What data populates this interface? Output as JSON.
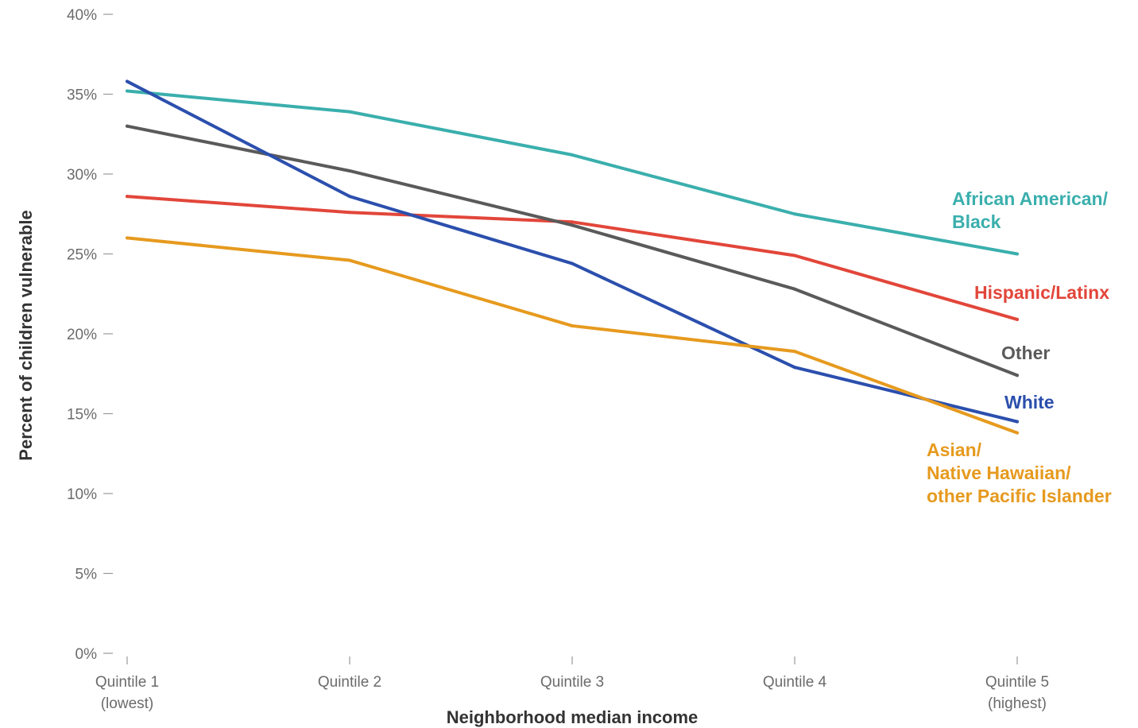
{
  "chart_data": {
    "type": "line",
    "xlabel": "Neighborhood median income",
    "ylabel": "Percent of children vulnerable",
    "ylim": [
      0,
      40
    ],
    "y_ticks": [
      0,
      5,
      10,
      15,
      20,
      25,
      30,
      35,
      40
    ],
    "y_tick_format": "{v}%",
    "grid": false,
    "legend": "direct labels at line ends (right)",
    "categories": [
      [
        "Quintile 1",
        "(lowest)"
      ],
      [
        "Quintile 2"
      ],
      [
        "Quintile 3"
      ],
      [
        "Quintile 4"
      ],
      [
        "Quintile 5",
        "(highest)"
      ]
    ],
    "series": [
      {
        "name": "African American/ Black",
        "label_lines": [
          "African American/",
          "Black"
        ],
        "color": "#3aafad",
        "values": [
          35.2,
          33.9,
          31.2,
          27.5,
          25.0
        ]
      },
      {
        "name": "Hispanic/Latinx",
        "label_lines": [
          "Hispanic/Latinx"
        ],
        "color": "#e2463a",
        "values": [
          28.6,
          27.6,
          27.0,
          24.9,
          20.9
        ]
      },
      {
        "name": "Other",
        "label_lines": [
          "Other"
        ],
        "color": "#5a5a5a",
        "values": [
          33.0,
          30.2,
          26.8,
          22.8,
          17.4
        ]
      },
      {
        "name": "White",
        "label_lines": [
          "White"
        ],
        "color": "#2b4fad",
        "values": [
          35.8,
          28.6,
          24.4,
          17.9,
          14.5
        ]
      },
      {
        "name": "Asian/ Native Hawaiian/ other Pacific Islander",
        "label_lines": [
          "Asian/",
          "Native Hawaiian/",
          "other Pacific Islander"
        ],
        "color": "#e69a1e",
        "values": [
          26.0,
          24.6,
          20.5,
          18.9,
          13.8
        ]
      }
    ]
  }
}
